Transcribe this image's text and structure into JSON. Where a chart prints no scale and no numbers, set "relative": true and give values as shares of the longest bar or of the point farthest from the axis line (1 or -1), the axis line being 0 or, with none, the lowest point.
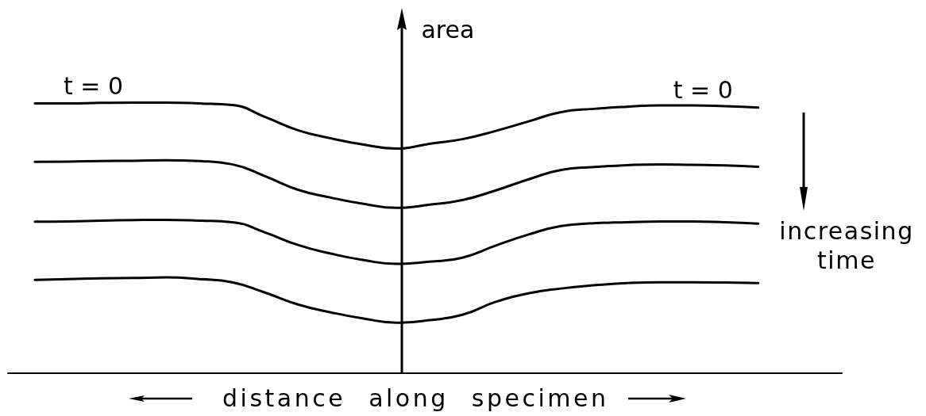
{
  "chart_data": {
    "type": "line",
    "relative": true,
    "xlabel": "distance along specimen",
    "ylabel": "area",
    "annotations": [
      "increasing time"
    ],
    "marker": "none",
    "categories": [
      null,
      null,
      null,
      null,
      null,
      null,
      null,
      null,
      null,
      null,
      null,
      null,
      null,
      null,
      null,
      null,
      null,
      null,
      null,
      null,
      null,
      null,
      null
    ],
    "series": [
      {
        "name": "t = 0",
        "color": "#000000",
        "values": [
          0.997,
          0.997,
          0.999,
          1.0,
          1.0,
          0.997,
          0.991,
          0.947,
          0.898,
          0.868,
          0.845,
          0.83,
          0.848,
          0.865,
          0.895,
          0.93,
          0.965,
          0.977,
          0.985,
          0.99,
          0.99,
          0.987,
          0.982
        ]
      },
      {
        "color": "#000000",
        "values": [
          0.781,
          0.782,
          0.784,
          0.785,
          0.787,
          0.784,
          0.772,
          0.728,
          0.678,
          0.649,
          0.626,
          0.611,
          0.623,
          0.64,
          0.675,
          0.716,
          0.751,
          0.762,
          0.769,
          0.772,
          0.77,
          0.768,
          0.763
        ]
      },
      {
        "color": "#000000",
        "values": [
          0.56,
          0.561,
          0.564,
          0.566,
          0.567,
          0.564,
          0.558,
          0.52,
          0.474,
          0.442,
          0.418,
          0.404,
          0.412,
          0.427,
          0.471,
          0.512,
          0.544,
          0.554,
          0.558,
          0.561,
          0.561,
          0.558,
          0.553
        ]
      },
      {
        "color": "#000000",
        "values": [
          0.345,
          0.348,
          0.351,
          0.352,
          0.354,
          0.348,
          0.336,
          0.298,
          0.254,
          0.225,
          0.202,
          0.187,
          0.196,
          0.216,
          0.263,
          0.295,
          0.313,
          0.325,
          0.333,
          0.336,
          0.336,
          0.335,
          0.333
        ]
      }
    ]
  }
}
